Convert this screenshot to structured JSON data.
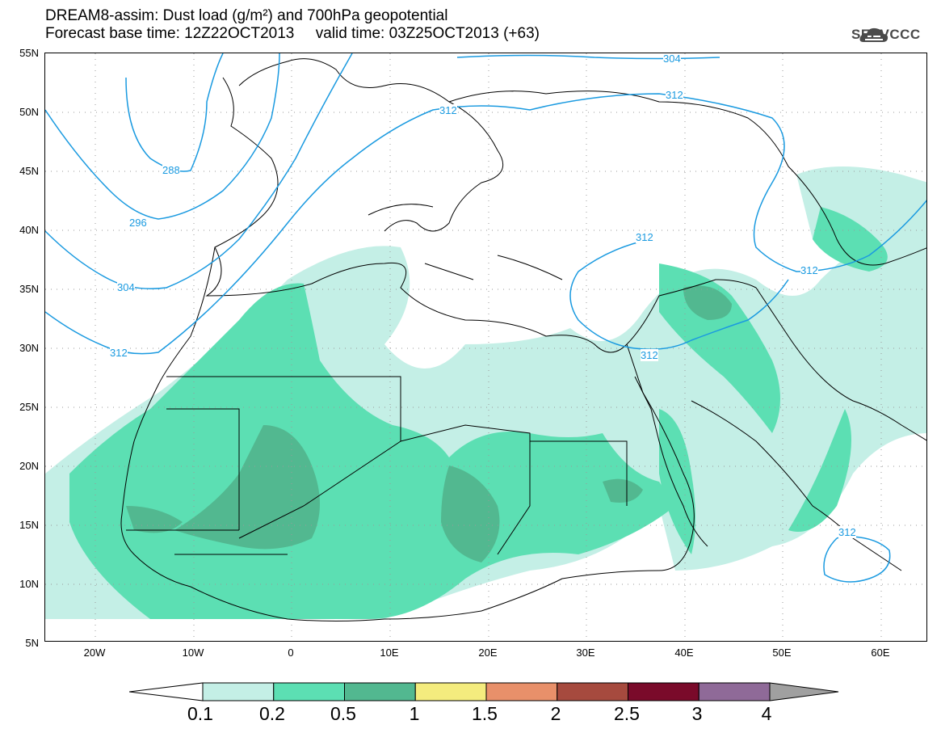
{
  "header": {
    "title_line1": "DREAM8-assim: Dust load (g/m²) and 700hPa geopotential",
    "title_line2": "Forecast base time: 12Z22OCT2013     valid time: 03Z25OCT2013 (+63)",
    "logo_text": "SEEVCCC"
  },
  "axes": {
    "lat_labels": [
      "55N",
      "50N",
      "45N",
      "40N",
      "35N",
      "30N",
      "25N",
      "20N",
      "15N",
      "10N",
      "5N"
    ],
    "lon_labels": [
      "20W",
      "10W",
      "0",
      "10E",
      "20E",
      "30E",
      "40E",
      "50E",
      "60E"
    ]
  },
  "contours": [
    {
      "label": "288"
    },
    {
      "label": "296"
    },
    {
      "label": "304"
    },
    {
      "label": "304"
    },
    {
      "label": "312"
    },
    {
      "label": "312"
    },
    {
      "label": "312"
    },
    {
      "label": "312"
    },
    {
      "label": "312"
    },
    {
      "label": "312"
    },
    {
      "label": "312"
    }
  ],
  "colorbar": {
    "labels": [
      "0.1",
      "0.2",
      "0.5",
      "1",
      "1.5",
      "2",
      "2.5",
      "3",
      "4"
    ],
    "colors": [
      "#c4efe6",
      "#5cdfb3",
      "#52b890",
      "#f4ec7e",
      "#e8906a",
      "#a64a3e",
      "#7a0a2a",
      "#8f6a98",
      "#a0a0a0"
    ]
  },
  "dust_colors": {
    "light": "#c4efe6",
    "medium": "#5cdfb3",
    "dark": "#52b890"
  },
  "contour_color": "#1a9ae0"
}
